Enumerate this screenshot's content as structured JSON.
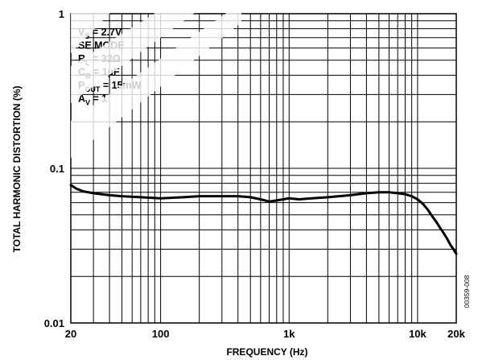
{
  "chart_data": {
    "type": "line",
    "xlabel": "FREQUENCY (Hz)",
    "ylabel": "TOTAL HARMONIC DISTORTION (%)",
    "x_scale": "log",
    "y_scale": "log",
    "xlim": [
      20,
      20000
    ],
    "ylim": [
      0.01,
      1
    ],
    "x_ticks": [
      {
        "value": 20,
        "label": "20"
      },
      {
        "value": 100,
        "label": "100"
      },
      {
        "value": 1000,
        "label": "1k"
      },
      {
        "value": 10000,
        "label": "10k"
      },
      {
        "value": 20000,
        "label": "20k"
      }
    ],
    "y_ticks": [
      {
        "value": 0.01,
        "label": "0.01"
      },
      {
        "value": 0.1,
        "label": "0.1"
      },
      {
        "value": 1,
        "label": "1"
      }
    ],
    "grid": true,
    "conditions": [
      {
        "main": "V",
        "sub": "S",
        "rest": " = 2.7V"
      },
      {
        "main": "SE MODE",
        "sub": "",
        "rest": ""
      },
      {
        "main": "R",
        "sub": "L",
        "rest": " = 32Ω"
      },
      {
        "main": "C",
        "sub": "B",
        "rest": " = 1µF"
      },
      {
        "main": "P",
        "sub": "OUT",
        "rest": " = 15mW"
      },
      {
        "main": "A",
        "sub": "V",
        "rest": " = 1"
      }
    ],
    "figure_id": "00359-008",
    "series": [
      {
        "x": [
          20,
          22,
          25,
          30,
          40,
          50,
          70,
          100,
          150,
          200,
          300,
          400,
          500,
          600,
          700,
          800,
          900,
          1000,
          1200,
          1500,
          2000,
          3000,
          4000,
          5000,
          6000,
          7000,
          8000,
          9000,
          10000,
          11000,
          12000,
          13000,
          14000,
          15000,
          16000,
          17000,
          18000,
          19000,
          20000
        ],
        "values": [
          0.078,
          0.074,
          0.071,
          0.069,
          0.067,
          0.066,
          0.065,
          0.064,
          0.065,
          0.066,
          0.066,
          0.066,
          0.065,
          0.063,
          0.061,
          0.062,
          0.063,
          0.064,
          0.063,
          0.064,
          0.065,
          0.067,
          0.069,
          0.07,
          0.07,
          0.069,
          0.068,
          0.066,
          0.063,
          0.059,
          0.054,
          0.049,
          0.045,
          0.041,
          0.038,
          0.035,
          0.032,
          0.03,
          0.028
        ]
      }
    ]
  }
}
